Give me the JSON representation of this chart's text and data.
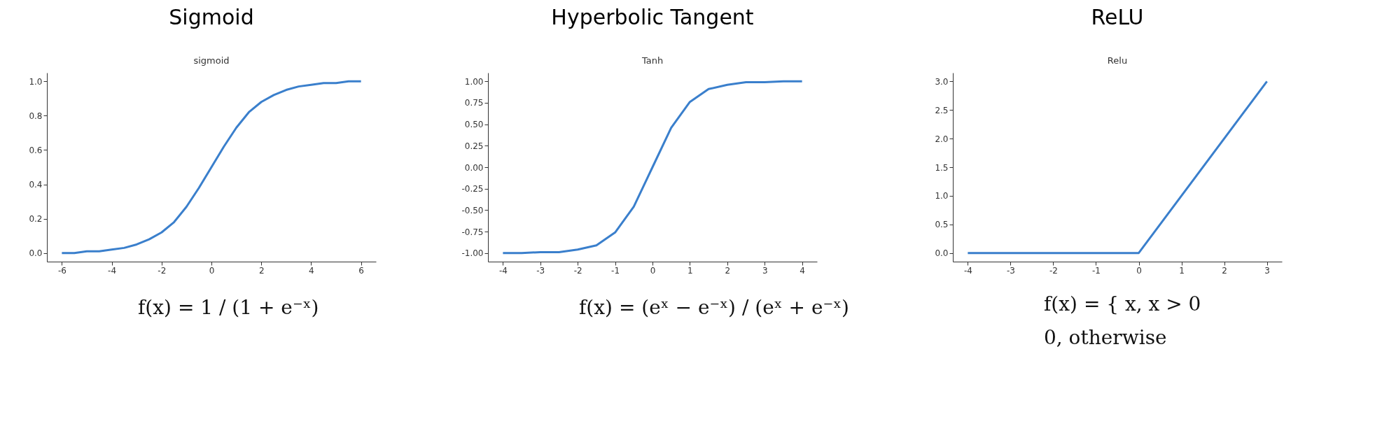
{
  "chart_data": [
    {
      "type": "line",
      "title": "Sigmoid",
      "subtitle": "sigmoid",
      "x": [
        -6,
        -5.5,
        -5,
        -4.5,
        -4,
        -3.5,
        -3,
        -2.5,
        -2,
        -1.5,
        -1,
        -0.5,
        0,
        0.5,
        1,
        1.5,
        2,
        2.5,
        3,
        3.5,
        4,
        4.5,
        5,
        5.5,
        6
      ],
      "series": [
        {
          "color": "#3a7fcc",
          "values": [
            0.0,
            0.0,
            0.01,
            0.01,
            0.02,
            0.03,
            0.05,
            0.08,
            0.12,
            0.18,
            0.27,
            0.38,
            0.5,
            0.62,
            0.73,
            0.82,
            0.88,
            0.92,
            0.95,
            0.97,
            0.98,
            0.99,
            0.99,
            1.0,
            1.0
          ]
        }
      ],
      "xlim": [
        -6.6,
        6.6
      ],
      "xticks": [
        -6,
        -4,
        -2,
        0,
        2,
        4,
        6
      ],
      "ylim": [
        -0.05,
        1.05
      ],
      "yticks": [
        {
          "value": 0,
          "label": "0.0"
        },
        0.2,
        0.4,
        0.6,
        0.8,
        {
          "value": 1,
          "label": "1.0"
        }
      ],
      "grid": false,
      "marker": "none",
      "line_style": "solid",
      "annotations": [
        "f(x) = 1 / (1 + e⁻ˣ)"
      ]
    },
    {
      "type": "line",
      "title": "Hyperbolic Tangent",
      "subtitle": "Tanh",
      "x": [
        -4,
        -3.5,
        -3,
        -2.5,
        -2,
        -1.5,
        -1,
        -0.5,
        0,
        0.5,
        1,
        1.5,
        2,
        2.5,
        3,
        3.5,
        4
      ],
      "series": [
        {
          "color": "#3a7fcc",
          "values": [
            -1.0,
            -1.0,
            -0.99,
            -0.99,
            -0.96,
            -0.91,
            -0.76,
            -0.46,
            0,
            0.46,
            0.76,
            0.91,
            0.96,
            0.99,
            0.99,
            1.0,
            1.0
          ]
        }
      ],
      "xlim": [
        -4.4,
        4.4
      ],
      "xticks": [
        -4,
        -3,
        -2,
        -1,
        0,
        1,
        2,
        3,
        4
      ],
      "ylim": [
        -1.1,
        1.1
      ],
      "yticks": [
        {
          "value": -1,
          "label": "-1.00"
        },
        -0.75,
        {
          "value": -0.5,
          "label": "-0.50"
        },
        -0.25,
        {
          "value": 0,
          "label": "0.00"
        },
        0.25,
        {
          "value": 0.5,
          "label": "0.50"
        },
        0.75,
        {
          "value": 1,
          "label": "1.00"
        }
      ],
      "grid": false,
      "marker": "none",
      "line_style": "solid",
      "annotations": [
        "f(x) = (eˣ − e⁻ˣ) / (eˣ + e⁻ˣ)"
      ]
    },
    {
      "type": "line",
      "title": "ReLU",
      "subtitle": "Relu",
      "x": [
        -4,
        0,
        3
      ],
      "series": [
        {
          "color": "#3a7fcc",
          "values": [
            0,
            0,
            3
          ]
        }
      ],
      "xlim": [
        -4.35,
        3.35
      ],
      "xticks": [
        -4,
        -3,
        -2,
        -1,
        0,
        1,
        2,
        3
      ],
      "ylim": [
        -0.15,
        3.15
      ],
      "yticks": [
        {
          "value": 0,
          "label": "0.0"
        },
        0.5,
        {
          "value": 1,
          "label": "1.0"
        },
        1.5,
        {
          "value": 2,
          "label": "2.0"
        },
        2.5,
        {
          "value": 3,
          "label": "3.0"
        }
      ],
      "grid": false,
      "marker": "none",
      "line_style": "solid",
      "annotations": [
        "f(x) = { x,     x > 0",
        "           0,    otherwise"
      ]
    }
  ]
}
